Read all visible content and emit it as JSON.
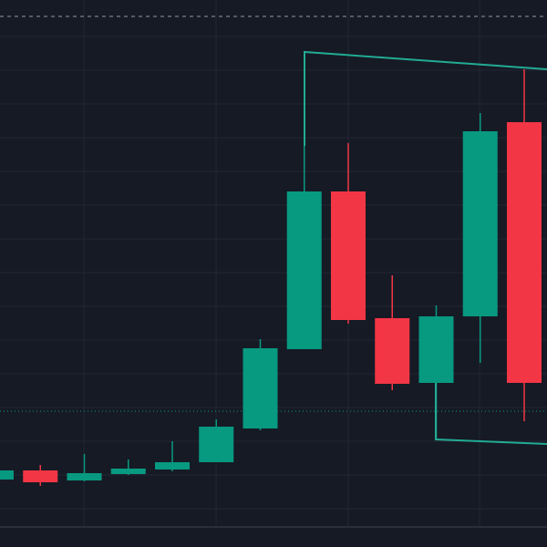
{
  "chart_data": {
    "type": "candlestick",
    "categories": [
      null,
      null,
      null,
      null,
      null,
      null,
      null,
      null,
      null,
      null,
      null,
      null,
      null
    ],
    "open": [
      74,
      84,
      73,
      80,
      85,
      93,
      130,
      217,
      390,
      251,
      180,
      253,
      466
    ],
    "high": [
      86,
      90,
      102,
      96,
      116,
      140,
      228,
      543,
      443,
      298,
      265,
      476,
      524
    ],
    "low": [
      72,
      67,
      72,
      79,
      83,
      93,
      128,
      217,
      245,
      172,
      118,
      202,
      138
    ],
    "close": [
      84,
      71,
      81,
      86,
      93,
      132,
      218,
      390,
      249,
      179,
      253,
      456,
      180
    ],
    "up_color": "#089981",
    "down_color": "#f23645",
    "ylim": [
      0,
      600
    ]
  }
}
